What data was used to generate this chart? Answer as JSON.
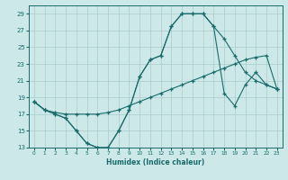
{
  "xlabel": "Humidex (Indice chaleur)",
  "xlim": [
    -0.5,
    23.5
  ],
  "ylim": [
    13,
    30
  ],
  "yticks": [
    13,
    15,
    17,
    19,
    21,
    23,
    25,
    27,
    29
  ],
  "xticks": [
    0,
    1,
    2,
    3,
    4,
    5,
    6,
    7,
    8,
    9,
    10,
    11,
    12,
    13,
    14,
    15,
    16,
    17,
    18,
    19,
    20,
    21,
    22,
    23
  ],
  "bg_color": "#cce8e8",
  "grid_color": "#aacccc",
  "line_color": "#1a6b6b",
  "curve1_x": [
    0,
    1,
    2,
    3,
    4,
    5,
    6,
    7,
    8,
    9,
    10,
    11,
    12,
    13,
    14,
    15,
    16,
    17,
    18,
    19,
    20,
    21,
    22,
    23
  ],
  "curve1_y": [
    18.5,
    17.5,
    17.0,
    16.5,
    15.0,
    13.5,
    13.0,
    13.0,
    15.0,
    17.5,
    21.5,
    23.5,
    24.0,
    27.5,
    29.0,
    29.0,
    29.0,
    27.5,
    26.0,
    24.0,
    22.0,
    21.0,
    20.5,
    20.0
  ],
  "curve2_x": [
    0,
    1,
    2,
    3,
    4,
    5,
    6,
    7,
    8,
    9,
    10,
    11,
    12,
    13,
    14,
    15,
    16,
    17,
    18,
    19,
    20,
    21,
    22,
    23
  ],
  "curve2_y": [
    18.5,
    17.5,
    17.0,
    16.5,
    15.0,
    13.5,
    13.0,
    13.0,
    15.0,
    17.5,
    21.5,
    23.5,
    24.0,
    27.5,
    29.0,
    29.0,
    29.0,
    27.5,
    19.5,
    18.0,
    20.5,
    22.0,
    20.5,
    20.0
  ],
  "curve3_x": [
    0,
    1,
    2,
    3,
    4,
    5,
    6,
    7,
    8,
    9,
    10,
    11,
    12,
    13,
    14,
    15,
    16,
    17,
    18,
    19,
    20,
    21,
    22,
    23
  ],
  "curve3_y": [
    18.5,
    17.5,
    17.2,
    17.0,
    17.0,
    17.0,
    17.0,
    17.2,
    17.5,
    18.0,
    18.5,
    19.0,
    19.5,
    20.0,
    20.5,
    21.0,
    21.5,
    22.0,
    22.5,
    23.0,
    23.5,
    23.8,
    24.0,
    20.0
  ]
}
